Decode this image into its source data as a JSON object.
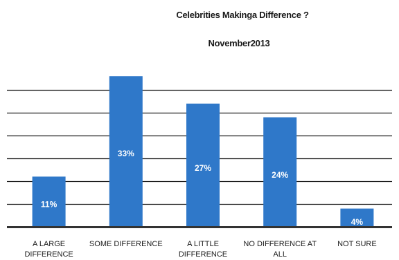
{
  "chart_data": {
    "type": "bar",
    "title": "Celebrities Makinga Difference ?",
    "subtitle": "November2013",
    "categories": [
      [
        "A LARGE",
        "DIFFERENCE"
      ],
      [
        "SOME DIFFERENCE"
      ],
      [
        "A LITTLE",
        "DIFFERENCE"
      ],
      [
        "NO DIFFERENCE AT",
        "ALL"
      ],
      [
        "NOT SURE"
      ]
    ],
    "values": [
      11,
      33,
      27,
      24,
      4
    ],
    "value_labels": [
      "11%",
      "33%",
      "27%",
      "24%",
      "4%"
    ],
    "ylim": [
      0,
      40
    ],
    "grid": true,
    "bar_color": "#2f78c9"
  }
}
